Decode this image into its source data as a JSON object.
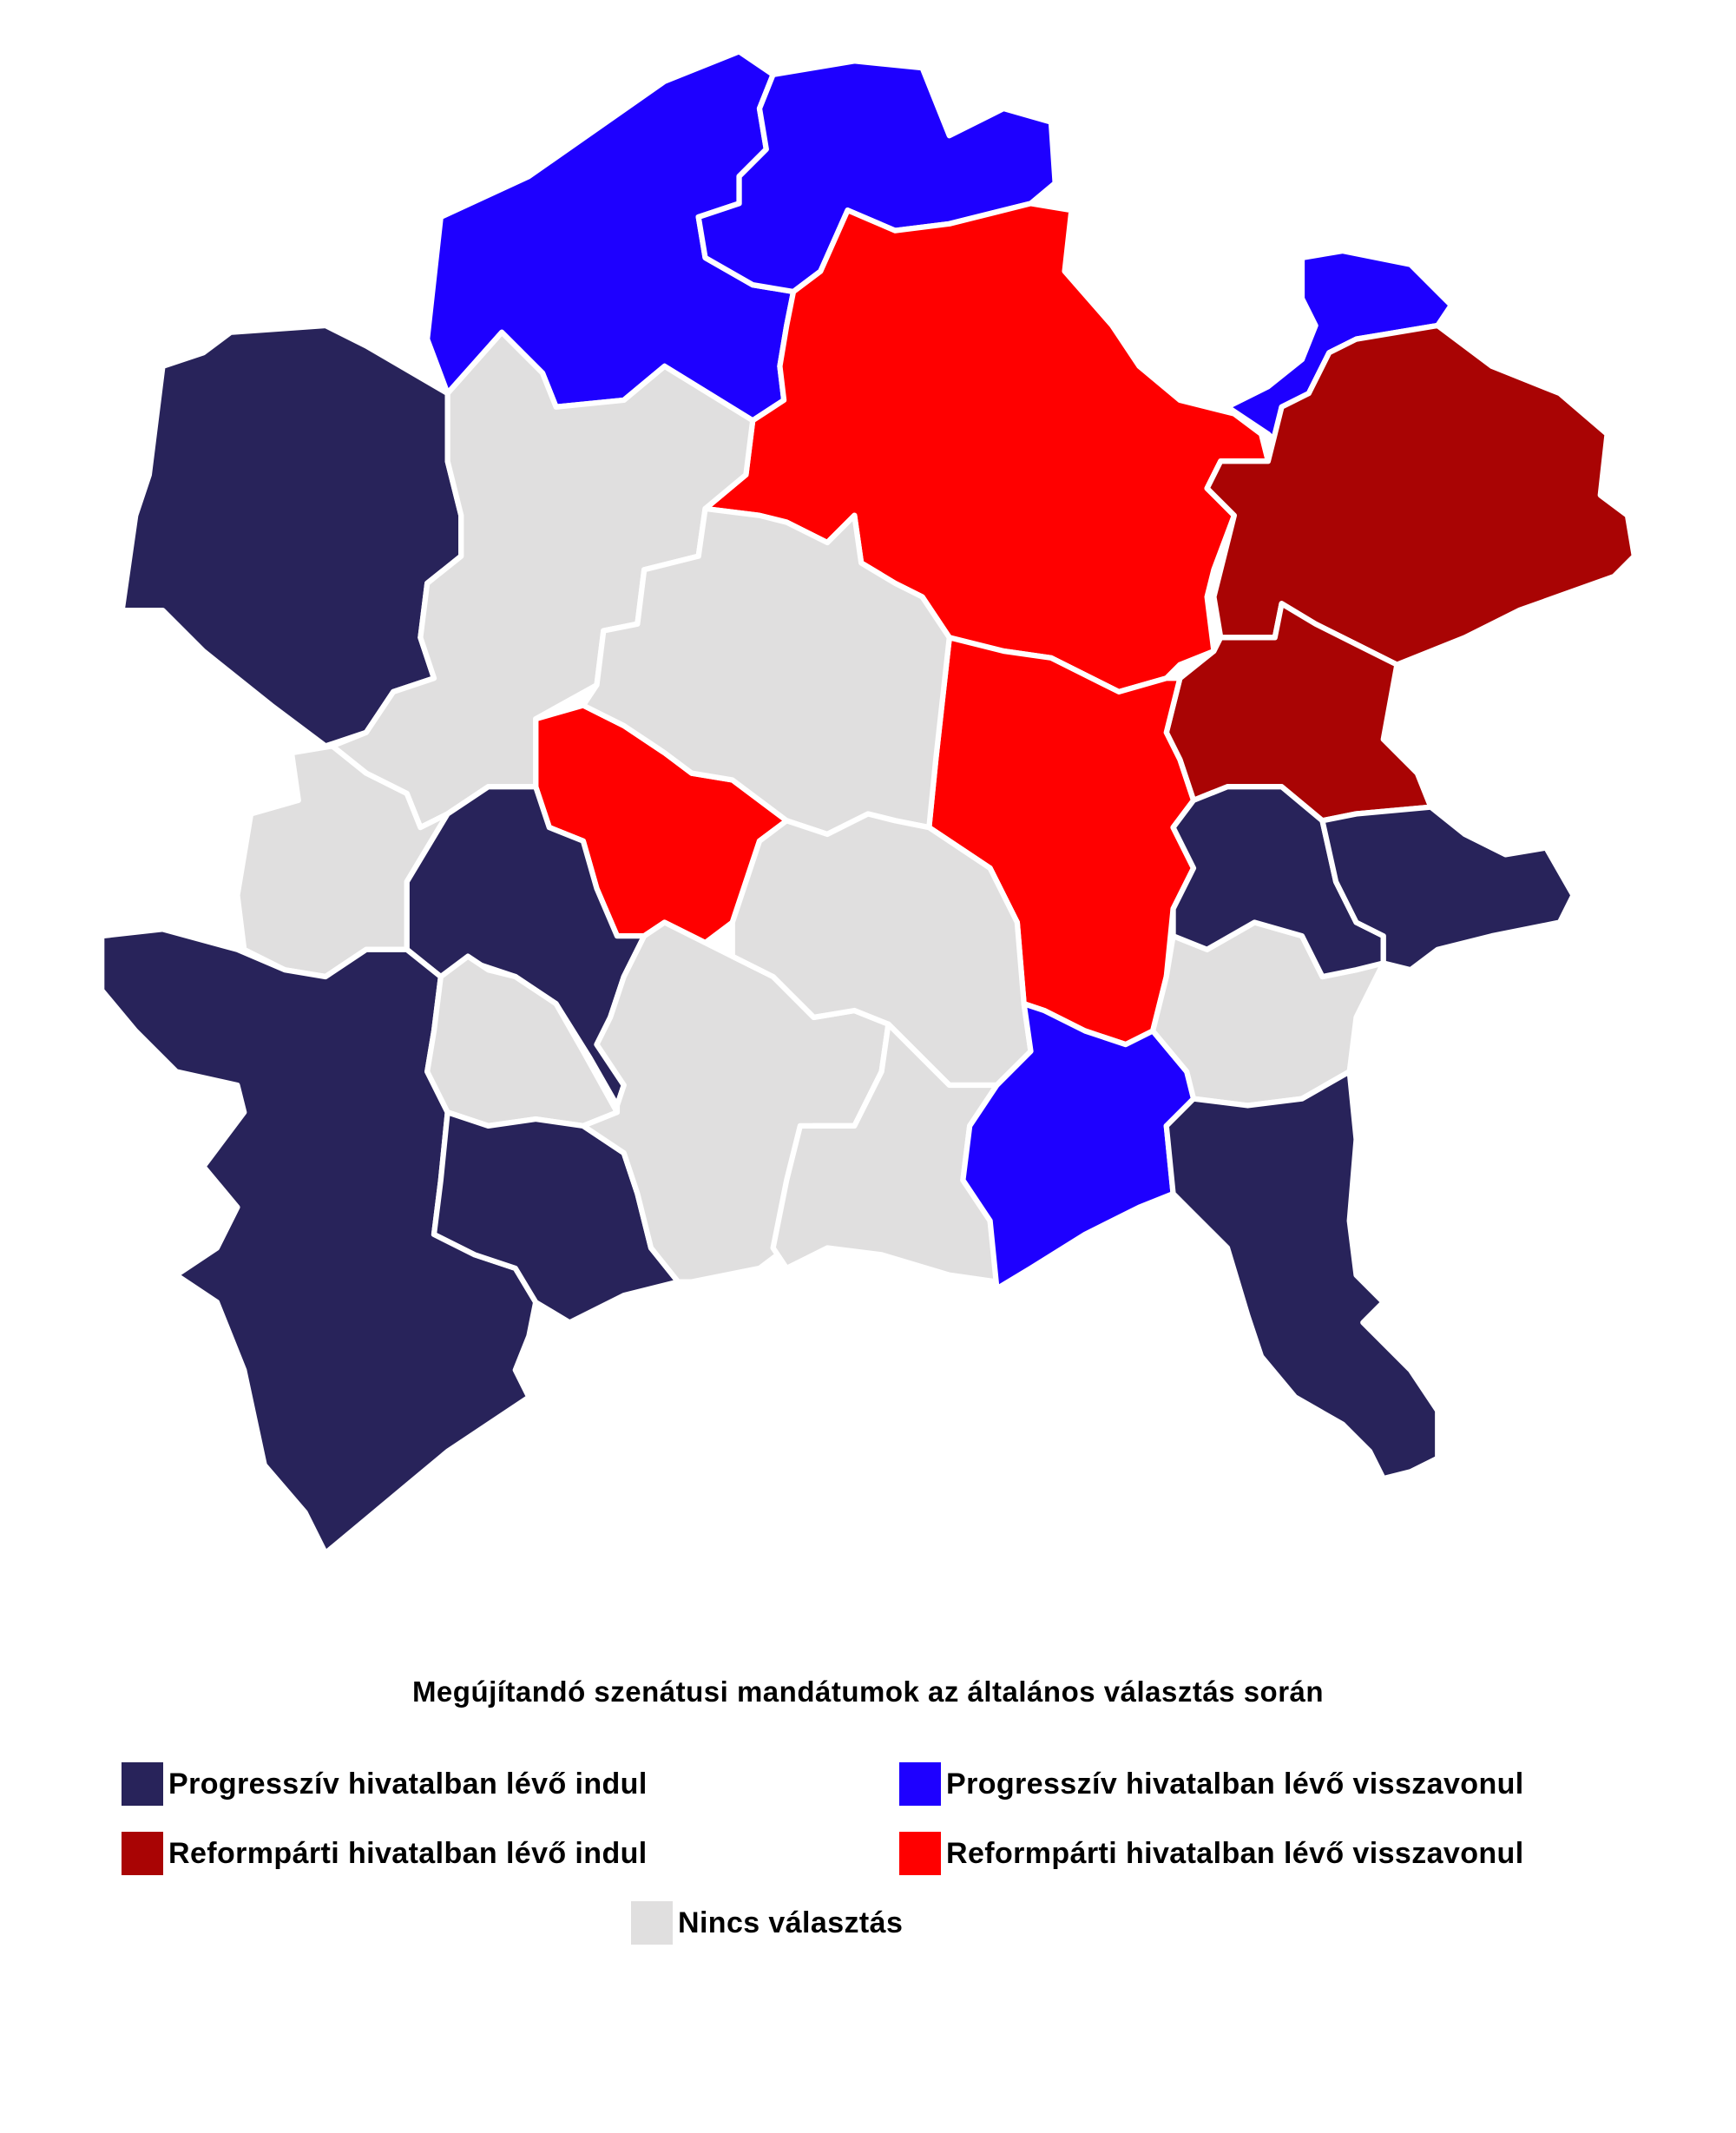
{
  "title": "Megújítandó szenátusi mandátumok az általános választás során",
  "legend": [
    {
      "key": "prog-indul",
      "label": "Progresszív hivatalban lévő indul",
      "color": "#28235a"
    },
    {
      "key": "prog-vissza",
      "label": "Progresszív hivatalban lévő visszavonul",
      "color": "#1e00ff"
    },
    {
      "key": "ref-indul",
      "label": "Reformpárti hivatalban lévő indul",
      "color": "#a90404"
    },
    {
      "key": "ref-vissza",
      "label": "Reformpárti hivatalban lévő visszavonul",
      "color": "#ff0000"
    },
    {
      "key": "nincs",
      "label": "Nincs választás",
      "color": "#e0dfdf"
    }
  ]
}
